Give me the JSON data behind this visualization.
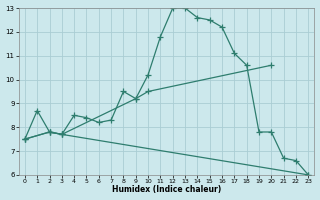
{
  "xlabel": "Humidex (Indice chaleur)",
  "bg_color": "#cce8ec",
  "grid_color": "#aacdd4",
  "line_color": "#2e7d6e",
  "xlim": [
    -0.5,
    23.5
  ],
  "ylim": [
    6,
    13
  ],
  "xticks": [
    0,
    1,
    2,
    3,
    4,
    5,
    6,
    7,
    8,
    9,
    10,
    11,
    12,
    13,
    14,
    15,
    16,
    17,
    18,
    19,
    20,
    21,
    22,
    23
  ],
  "yticks": [
    6,
    7,
    8,
    9,
    10,
    11,
    12,
    13
  ],
  "line1_x": [
    0,
    1,
    2,
    3,
    4,
    5,
    6,
    7,
    8,
    9,
    10,
    11,
    12,
    13,
    14,
    15,
    16,
    17,
    18,
    19,
    20,
    21,
    22,
    23
  ],
  "line1_y": [
    7.5,
    8.7,
    7.8,
    7.7,
    8.5,
    8.4,
    8.2,
    8.3,
    9.5,
    9.2,
    10.2,
    11.8,
    13.0,
    13.0,
    12.6,
    12.5,
    12.2,
    11.1,
    10.6,
    7.8,
    7.8,
    6.7,
    6.6,
    6.0
  ],
  "line2_x": [
    0,
    2,
    3,
    9,
    10,
    20
  ],
  "line2_y": [
    7.5,
    7.8,
    7.7,
    9.2,
    9.5,
    10.6
  ],
  "line3_x": [
    0,
    2,
    3,
    23
  ],
  "line3_y": [
    7.5,
    7.8,
    7.7,
    6.0
  ]
}
